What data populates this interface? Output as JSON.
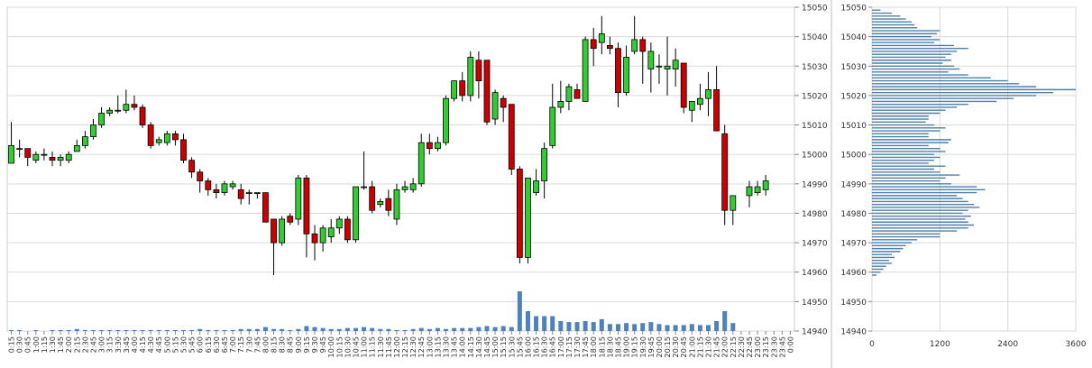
{
  "chart_data": [
    {
      "type": "candlestick",
      "title": "",
      "ylim": [
        14940,
        15050
      ],
      "yticks": [
        "15050",
        "15040",
        "15030",
        "15020",
        "15010",
        "15000",
        "14990",
        "14980",
        "14970",
        "14960",
        "14950",
        "14940"
      ],
      "xticks": [
        "0:15",
        "0:30",
        "0:45",
        "1:00",
        "1:15",
        "1:30",
        "1:45",
        "2:00",
        "2:15",
        "2:30",
        "2:45",
        "3:00",
        "3:15",
        "3:30",
        "3:45",
        "4:00",
        "4:15",
        "4:30",
        "4:45",
        "5:00",
        "5:15",
        "5:30",
        "5:45",
        "6:00",
        "6:15",
        "6:30",
        "6:45",
        "7:00",
        "7:15",
        "7:30",
        "7:45",
        "8:00",
        "8:15",
        "8:30",
        "8:45",
        "9:00",
        "9:15",
        "9:30",
        "9:45",
        "10:00",
        "10:15",
        "10:30",
        "10:45",
        "11:00",
        "11:15",
        "11:30",
        "11:45",
        "12:00",
        "12:15",
        "12:30",
        "12:45",
        "13:00",
        "13:15",
        "13:30",
        "13:45",
        "14:00",
        "14:15",
        "14:30",
        "14:45",
        "15:00",
        "15:15",
        "15:30",
        "15:45",
        "16:00",
        "16:15",
        "16:30",
        "16:45",
        "17:00",
        "17:15",
        "17:30",
        "17:45",
        "18:00",
        "18:15",
        "18:30",
        "18:45",
        "19:00",
        "19:15",
        "19:30",
        "19:45",
        "20:00",
        "20:15",
        "20:30",
        "20:45",
        "21:00",
        "21:15",
        "21:30",
        "21:45",
        "22:00",
        "22:15",
        "22:30",
        "22:45",
        "23:00",
        "23:15",
        "23:30",
        "23:45",
        "0:00"
      ],
      "candles": [
        {
          "t": "0:15",
          "o": 14997,
          "h": 15011,
          "l": 14997,
          "c": 15003
        },
        {
          "t": "0:30",
          "o": 15002,
          "h": 15005,
          "l": 14999,
          "c": 15002
        },
        {
          "t": "0:45",
          "o": 15002,
          "h": 15002,
          "l": 14996,
          "c": 14999
        },
        {
          "t": "1:00",
          "o": 14998,
          "h": 15001,
          "l": 14997,
          "c": 15000
        },
        {
          "t": "1:15",
          "o": 15000,
          "h": 15002,
          "l": 14998,
          "c": 15000
        },
        {
          "t": "1:30",
          "o": 14999,
          "h": 15001,
          "l": 14996,
          "c": 14998
        },
        {
          "t": "1:45",
          "o": 14998,
          "h": 15000,
          "l": 14996,
          "c": 14999
        },
        {
          "t": "2:00",
          "o": 14998,
          "h": 15001,
          "l": 14997,
          "c": 15000
        },
        {
          "t": "2:15",
          "o": 15001,
          "h": 15005,
          "l": 15001,
          "c": 15003
        },
        {
          "t": "2:30",
          "o": 15003,
          "h": 15008,
          "l": 15002,
          "c": 15006
        },
        {
          "t": "2:45",
          "o": 15006,
          "h": 15012,
          "l": 15005,
          "c": 15010
        },
        {
          "t": "3:00",
          "o": 15010,
          "h": 15016,
          "l": 15009,
          "c": 15014
        },
        {
          "t": "3:15",
          "o": 15014,
          "h": 15016,
          "l": 15013,
          "c": 15015
        },
        {
          "t": "3:30",
          "o": 15015,
          "h": 15020,
          "l": 15014,
          "c": 15015
        },
        {
          "t": "3:45",
          "o": 15015,
          "h": 15022,
          "l": 15014,
          "c": 15017
        },
        {
          "t": "4:00",
          "o": 15017,
          "h": 15020,
          "l": 15015,
          "c": 15016
        },
        {
          "t": "4:15",
          "o": 15016,
          "h": 15017,
          "l": 15009,
          "c": 15010
        },
        {
          "t": "4:30",
          "o": 15010,
          "h": 15011,
          "l": 15002,
          "c": 15003
        },
        {
          "t": "4:45",
          "o": 15004,
          "h": 15006,
          "l": 15003,
          "c": 15005
        },
        {
          "t": "5:00",
          "o": 15004,
          "h": 15008,
          "l": 15003,
          "c": 15007
        },
        {
          "t": "5:15",
          "o": 15007,
          "h": 15008,
          "l": 15003,
          "c": 15005
        },
        {
          "t": "5:30",
          "o": 15005,
          "h": 15007,
          "l": 14997,
          "c": 14998
        },
        {
          "t": "5:45",
          "o": 14998,
          "h": 14999,
          "l": 14992,
          "c": 14994
        },
        {
          "t": "6:00",
          "o": 14994,
          "h": 14995,
          "l": 14987,
          "c": 14991
        },
        {
          "t": "6:15",
          "o": 14991,
          "h": 14992,
          "l": 14986,
          "c": 14988
        },
        {
          "t": "6:30",
          "o": 14988,
          "h": 14990,
          "l": 14985,
          "c": 14987
        },
        {
          "t": "6:45",
          "o": 14987,
          "h": 14991,
          "l": 14986,
          "c": 14990
        },
        {
          "t": "7:00",
          "o": 14989,
          "h": 14991,
          "l": 14988,
          "c": 14990
        },
        {
          "t": "7:15",
          "o": 14988,
          "h": 14990,
          "l": 14983,
          "c": 14985
        },
        {
          "t": "7:30",
          "o": 14987,
          "h": 14988,
          "l": 14983,
          "c": 14987
        },
        {
          "t": "7:45",
          "o": 14987,
          "h": 14987,
          "l": 14985,
          "c": 14987
        },
        {
          "t": "8:00",
          "o": 14987,
          "h": 14987,
          "l": 14977,
          "c": 14977
        },
        {
          "t": "8:15",
          "o": 14978,
          "h": 14978,
          "l": 14959,
          "c": 14970
        },
        {
          "t": "8:30",
          "o": 14970,
          "h": 14979,
          "l": 14969,
          "c": 14978
        },
        {
          "t": "8:45",
          "o": 14979,
          "h": 14980,
          "l": 14976,
          "c": 14977
        },
        {
          "t": "9:00",
          "o": 14978,
          "h": 14993,
          "l": 14976,
          "c": 14992
        },
        {
          "t": "9:15",
          "o": 14992,
          "h": 14993,
          "l": 14965,
          "c": 14973
        },
        {
          "t": "9:30",
          "o": 14973,
          "h": 14976,
          "l": 14964,
          "c": 14970
        },
        {
          "t": "9:45",
          "o": 14970,
          "h": 14976,
          "l": 14967,
          "c": 14975
        },
        {
          "t": "10:00",
          "o": 14972,
          "h": 14978,
          "l": 14970,
          "c": 14975
        },
        {
          "t": "10:15",
          "o": 14975,
          "h": 14979,
          "l": 14973,
          "c": 14978
        },
        {
          "t": "10:30",
          "o": 14978,
          "h": 14979,
          "l": 14970,
          "c": 14971
        },
        {
          "t": "10:45",
          "o": 14971,
          "h": 14989,
          "l": 14970,
          "c": 14989
        },
        {
          "t": "11:00",
          "o": 14989,
          "h": 15001,
          "l": 14988,
          "c": 14989
        },
        {
          "t": "11:15",
          "o": 14989,
          "h": 14991,
          "l": 14980,
          "c": 14981
        },
        {
          "t": "11:30",
          "o": 14983,
          "h": 14985,
          "l": 14982,
          "c": 14984
        },
        {
          "t": "11:45",
          "o": 14985,
          "h": 14988,
          "l": 14979,
          "c": 14981
        },
        {
          "t": "12:00",
          "o": 14978,
          "h": 14990,
          "l": 14976,
          "c": 14988
        },
        {
          "t": "12:15",
          "o": 14988,
          "h": 14991,
          "l": 14987,
          "c": 14989
        },
        {
          "t": "12:30",
          "o": 14988,
          "h": 14992,
          "l": 14987,
          "c": 14990
        },
        {
          "t": "12:45",
          "o": 14990,
          "h": 15007,
          "l": 14989,
          "c": 15004
        },
        {
          "t": "13:00",
          "o": 15004,
          "h": 15007,
          "l": 15000,
          "c": 15002
        },
        {
          "t": "13:15",
          "o": 15002,
          "h": 15006,
          "l": 15001,
          "c": 15004
        },
        {
          "t": "13:30",
          "o": 15004,
          "h": 15020,
          "l": 15003,
          "c": 15019
        },
        {
          "t": "13:45",
          "o": 15019,
          "h": 15025,
          "l": 15018,
          "c": 15025
        },
        {
          "t": "14:00",
          "o": 15025,
          "h": 15028,
          "l": 15018,
          "c": 15020
        },
        {
          "t": "14:15",
          "o": 15020,
          "h": 15035,
          "l": 15018,
          "c": 15033
        },
        {
          "t": "14:30",
          "o": 15032,
          "h": 15035,
          "l": 15019,
          "c": 15025
        },
        {
          "t": "14:45",
          "o": 15032,
          "h": 15032,
          "l": 15010,
          "c": 15011
        },
        {
          "t": "15:00",
          "o": 15012,
          "h": 15022,
          "l": 15010,
          "c": 15021
        },
        {
          "t": "15:15",
          "o": 15019,
          "h": 15020,
          "l": 15011,
          "c": 15016
        },
        {
          "t": "15:30",
          "o": 15017,
          "h": 15017,
          "l": 14993,
          "c": 14995
        },
        {
          "t": "15:45",
          "o": 14995,
          "h": 14996,
          "l": 14963,
          "c": 14965
        },
        {
          "t": "16:00",
          "o": 14965,
          "h": 14992,
          "l": 14963,
          "c": 14992
        },
        {
          "t": "16:15",
          "o": 14987,
          "h": 14995,
          "l": 14986,
          "c": 14991
        },
        {
          "t": "16:30",
          "o": 14991,
          "h": 15004,
          "l": 14985,
          "c": 15002
        },
        {
          "t": "16:45",
          "o": 15003,
          "h": 15024,
          "l": 15002,
          "c": 15016
        },
        {
          "t": "17:00",
          "o": 15016,
          "h": 15025,
          "l": 15014,
          "c": 15018
        },
        {
          "t": "17:15",
          "o": 15018,
          "h": 15024,
          "l": 15015,
          "c": 15023
        },
        {
          "t": "17:30",
          "o": 15022,
          "h": 15024,
          "l": 15019,
          "c": 15019
        },
        {
          "t": "17:45",
          "o": 15018,
          "h": 15040,
          "l": 15018,
          "c": 15039
        },
        {
          "t": "18:00",
          "o": 15039,
          "h": 15043,
          "l": 15030,
          "c": 15036
        },
        {
          "t": "18:15",
          "o": 15038,
          "h": 15047,
          "l": 15034,
          "c": 15041
        },
        {
          "t": "18:30",
          "o": 15037,
          "h": 15040,
          "l": 15034,
          "c": 15036
        },
        {
          "t": "18:45",
          "o": 15036,
          "h": 15038,
          "l": 15016,
          "c": 15021
        },
        {
          "t": "19:00",
          "o": 15021,
          "h": 15037,
          "l": 15020,
          "c": 15033
        },
        {
          "t": "19:15",
          "o": 15035,
          "h": 15047,
          "l": 15034,
          "c": 15039
        },
        {
          "t": "19:30",
          "o": 15039,
          "h": 15040,
          "l": 15024,
          "c": 15035
        },
        {
          "t": "19:45",
          "o": 15029,
          "h": 15038,
          "l": 15021,
          "c": 15035
        },
        {
          "t": "20:00",
          "o": 15030,
          "h": 15034,
          "l": 15024,
          "c": 15030
        },
        {
          "t": "20:15",
          "o": 15029,
          "h": 15040,
          "l": 15020,
          "c": 15030
        },
        {
          "t": "20:30",
          "o": 15029,
          "h": 15036,
          "l": 15023,
          "c": 15032
        },
        {
          "t": "20:45",
          "o": 15031,
          "h": 15031,
          "l": 15014,
          "c": 15016
        },
        {
          "t": "21:00",
          "o": 15015,
          "h": 15018,
          "l": 15011,
          "c": 15018
        },
        {
          "t": "21:15",
          "o": 15017,
          "h": 15024,
          "l": 15015,
          "c": 15019
        },
        {
          "t": "21:30",
          "o": 15019,
          "h": 15028,
          "l": 15013,
          "c": 15022
        },
        {
          "t": "21:45",
          "o": 15022,
          "h": 15030,
          "l": 15008,
          "c": 15008
        },
        {
          "t": "22:00",
          "o": 15007,
          "h": 15010,
          "l": 14976,
          "c": 14981
        },
        {
          "t": "22:15",
          "o": 14981,
          "h": 14986,
          "l": 14976,
          "c": 14986
        },
        {
          "t": "22:30",
          "o": null,
          "h": null,
          "l": null,
          "c": null
        },
        {
          "t": "22:45",
          "o": 14986,
          "h": 14991,
          "l": 14982,
          "c": 14989
        },
        {
          "t": "23:00",
          "o": 14987,
          "h": 14991,
          "l": 14986,
          "c": 14989
        },
        {
          "t": "23:15",
          "o": 14988,
          "h": 14993,
          "l": 14986,
          "c": 14991
        }
      ],
      "volume_bars": [
        1,
        1,
        0,
        1,
        0,
        1,
        1,
        1,
        2,
        1,
        1,
        1,
        1,
        1,
        1,
        1,
        1,
        1,
        1,
        1,
        1,
        1,
        1,
        2,
        1,
        1,
        1,
        1,
        2,
        2,
        2,
        4,
        2,
        2,
        1,
        2,
        5,
        4,
        3,
        2,
        2,
        3,
        3,
        4,
        3,
        2,
        2,
        1,
        1,
        2,
        3,
        2,
        3,
        2,
        3,
        3,
        3,
        4,
        5,
        4,
        5,
        4,
        40,
        20,
        15,
        15,
        15,
        10,
        9,
        9,
        10,
        9,
        12,
        7,
        7,
        8,
        7,
        8,
        9,
        7,
        6,
        6,
        6,
        7,
        6,
        6,
        10,
        20,
        8,
        0,
        0,
        0,
        0
      ]
    },
    {
      "type": "bar",
      "orientation": "horizontal",
      "title": "",
      "xlim": [
        0,
        3600
      ],
      "xticks": [
        "0",
        "1200",
        "2400",
        "3600"
      ],
      "yticks": [
        "15050",
        "15040",
        "15030",
        "15020",
        "15010",
        "15000",
        "14990",
        "14980",
        "14970",
        "14960",
        "14950",
        "14940"
      ],
      "price_levels_high_to_low": [
        15049,
        15048,
        15047,
        15046,
        15045,
        15044,
        15043,
        15042,
        15041,
        15040,
        15039,
        15038,
        15037,
        15036,
        15035,
        15034,
        15033,
        15032,
        15031,
        15030,
        15029,
        15028,
        15027,
        15026,
        15025,
        15024,
        15023,
        15022,
        15021,
        15020,
        15019,
        15018,
        15017,
        15016,
        15015,
        15014,
        15013,
        15012,
        15011,
        15010,
        15009,
        15008,
        15007,
        15006,
        15005,
        15004,
        15003,
        15002,
        15001,
        15000,
        14999,
        14998,
        14997,
        14996,
        14995,
        14994,
        14993,
        14992,
        14991,
        14990,
        14989,
        14988,
        14987,
        14986,
        14985,
        14984,
        14983,
        14982,
        14981,
        14980,
        14979,
        14978,
        14977,
        14976,
        14975,
        14974,
        14973,
        14972,
        14971,
        14970,
        14969,
        14968,
        14967,
        14966,
        14965,
        14964,
        14963,
        14962,
        14961,
        14960,
        14959
      ],
      "values": [
        150,
        350,
        500,
        600,
        700,
        750,
        800,
        1200,
        1150,
        1050,
        1200,
        1100,
        1450,
        1700,
        1500,
        1400,
        1300,
        1400,
        1250,
        1450,
        1550,
        1350,
        1700,
        2100,
        2400,
        2600,
        2900,
        3600,
        3200,
        2900,
        2500,
        2200,
        1700,
        1500,
        1300,
        1200,
        1000,
        1000,
        950,
        1100,
        1300,
        1200,
        1000,
        1000,
        1400,
        1350,
        1000,
        1200,
        1300,
        1100,
        1200,
        1100,
        1000,
        1300,
        1100,
        1200,
        1550,
        1300,
        1200,
        1400,
        1850,
        2000,
        1850,
        1500,
        1600,
        1700,
        1800,
        1900,
        1700,
        1600,
        1750,
        1650,
        1700,
        1800,
        1700,
        1500,
        1200,
        1200,
        800,
        700,
        600,
        550,
        500,
        350,
        400,
        300,
        350,
        250,
        200,
        150,
        80
      ]
    }
  ]
}
